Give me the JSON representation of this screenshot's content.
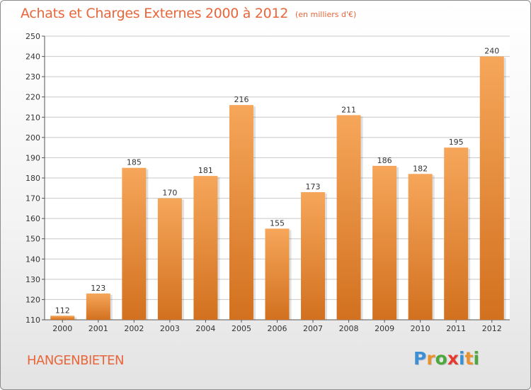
{
  "header": {
    "title": "Achats et Charges Externes 2000 à 2012",
    "unit": "(en milliers d'€)"
  },
  "footer": {
    "commune": "HANGENBIETEN",
    "logo": {
      "letters": [
        "P",
        "r",
        "o",
        "x",
        "i",
        "t",
        "i"
      ],
      "colors": [
        "#3d8fd6",
        "#e9912c",
        "#4aa83c",
        "#e43a2f",
        "#3d8fd6",
        "#e9912c",
        "#4aa83c"
      ]
    }
  },
  "colors": {
    "bar_top": "#f6a65a",
    "bar_bottom": "#d2711f",
    "accent_text": "#e8663a",
    "grid": "#c8c8c8"
  },
  "chart_data": {
    "type": "bar",
    "title": "Achats et Charges Externes 2000 à 2012",
    "subtitle": "(en milliers d'€)",
    "categories": [
      "2000",
      "2001",
      "2002",
      "2003",
      "2004",
      "2005",
      "2006",
      "2007",
      "2008",
      "2009",
      "2010",
      "2011",
      "2012"
    ],
    "values": [
      112,
      123,
      185,
      170,
      181,
      216,
      155,
      173,
      211,
      186,
      182,
      195,
      240
    ],
    "ylim": [
      110,
      250
    ],
    "yticks": [
      110,
      120,
      130,
      140,
      150,
      160,
      170,
      180,
      190,
      200,
      210,
      220,
      230,
      240,
      250
    ],
    "grid": true,
    "legend": "none"
  }
}
